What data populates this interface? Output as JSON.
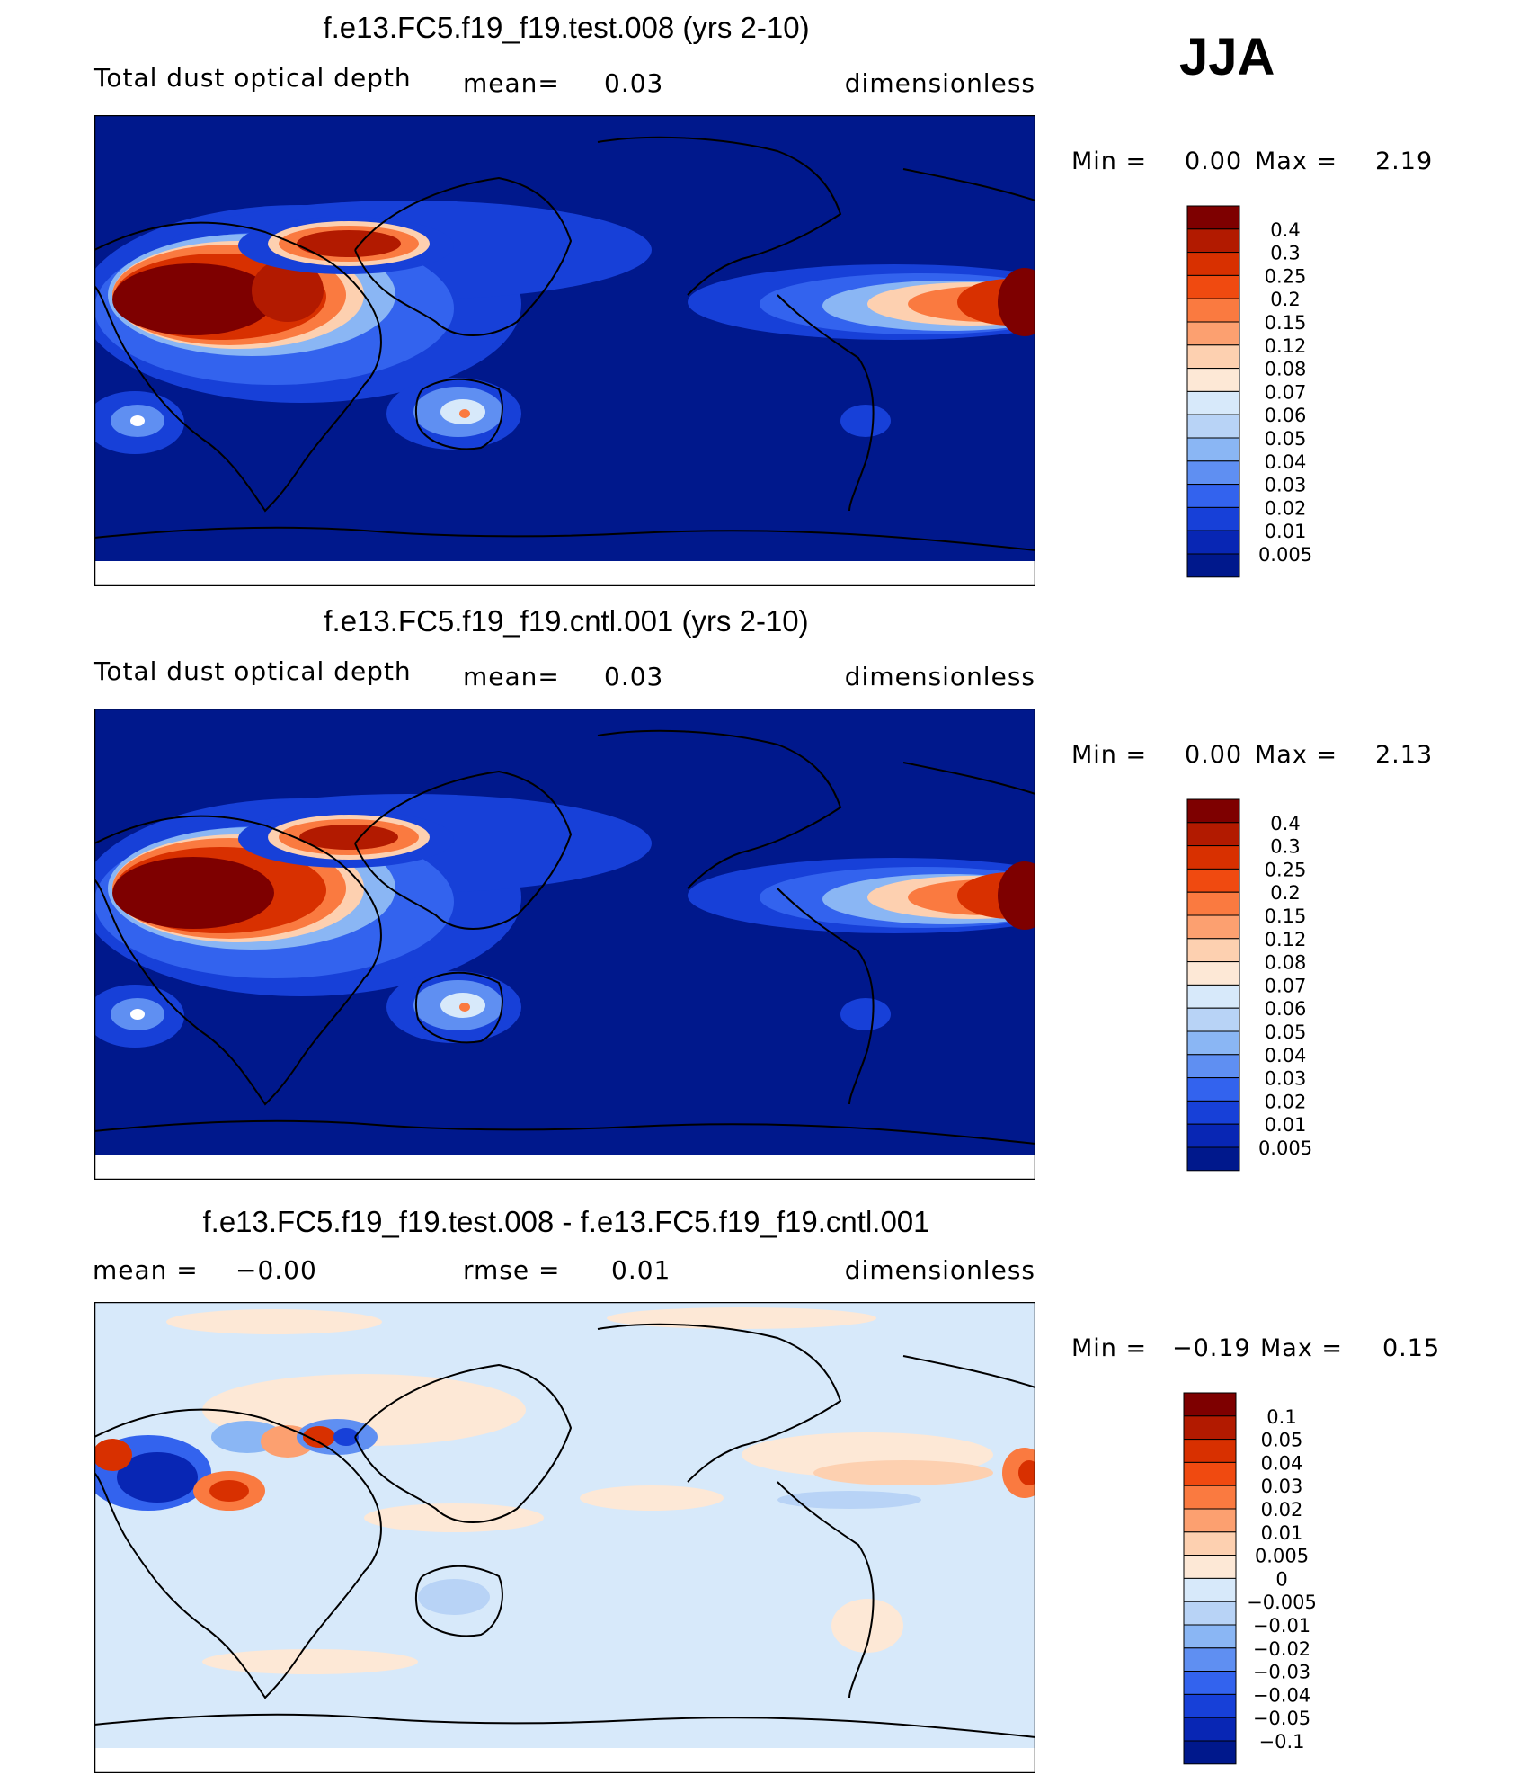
{
  "season": "JJA",
  "colors": {
    "ocean_deep": "#00188c",
    "diff_background": "#d7e9fa",
    "coastline": "#000000"
  },
  "panels": [
    {
      "title": "f.e13.FC5.f19_f19.test.008 (yrs 2-10)",
      "variable": "Total dust optical depth",
      "mean_label": "mean=",
      "mean_value": "0.03",
      "units": "dimensionless",
      "min_label": "Min =",
      "min_value": "0.00",
      "max_label": "Max =",
      "max_value": "2.19",
      "colorbar": {
        "levels": [
          "0.4",
          "0.3",
          "0.25",
          "0.2",
          "0.15",
          "0.12",
          "0.08",
          "0.07",
          "0.06",
          "0.05",
          "0.04",
          "0.03",
          "0.02",
          "0.01",
          "0.005"
        ],
        "colors": [
          "#7e0000",
          "#b21a00",
          "#d83000",
          "#f04a10",
          "#fa7a40",
          "#fca070",
          "#fdd0b0",
          "#fde8d6",
          "#d7e9fa",
          "#b8d3f6",
          "#8ab6f4",
          "#5f8ff2",
          "#3363ee",
          "#1740d8",
          "#0826b4",
          "#00188c"
        ]
      }
    },
    {
      "title": "f.e13.FC5.f19_f19.cntl.001 (yrs 2-10)",
      "variable": "Total dust optical depth",
      "mean_label": "mean=",
      "mean_value": "0.03",
      "units": "dimensionless",
      "min_label": "Min =",
      "min_value": "0.00",
      "max_label": "Max =",
      "max_value": "2.13",
      "colorbar": {
        "levels": [
          "0.4",
          "0.3",
          "0.25",
          "0.2",
          "0.15",
          "0.12",
          "0.08",
          "0.07",
          "0.06",
          "0.05",
          "0.04",
          "0.03",
          "0.02",
          "0.01",
          "0.005"
        ],
        "colors": [
          "#7e0000",
          "#b21a00",
          "#d83000",
          "#f04a10",
          "#fa7a40",
          "#fca070",
          "#fdd0b0",
          "#fde8d6",
          "#d7e9fa",
          "#b8d3f6",
          "#8ab6f4",
          "#5f8ff2",
          "#3363ee",
          "#1740d8",
          "#0826b4",
          "#00188c"
        ]
      }
    },
    {
      "title": "f.e13.FC5.f19_f19.test.008 - f.e13.FC5.f19_f19.cntl.001",
      "mean_label": "mean =",
      "mean_value": "−0.00",
      "rmse_label": "rmse =",
      "rmse_value": "0.01",
      "units": "dimensionless",
      "min_label": "Min =",
      "min_value": "−0.19",
      "max_label": "Max =",
      "max_value": "0.15",
      "colorbar": {
        "levels": [
          "0.1",
          "0.05",
          "0.04",
          "0.03",
          "0.02",
          "0.01",
          "0.005",
          "0",
          "−0.005",
          "−0.01",
          "−0.02",
          "−0.03",
          "−0.04",
          "−0.05",
          "−0.1"
        ],
        "colors": [
          "#7e0000",
          "#b21a00",
          "#d83000",
          "#f04a10",
          "#fa7a40",
          "#fca070",
          "#fdd0b0",
          "#fde8d6",
          "#d7e9fa",
          "#b8d3f6",
          "#8ab6f4",
          "#5f8ff2",
          "#3363ee",
          "#1740d8",
          "#0826b4",
          "#00188c"
        ]
      }
    }
  ]
}
